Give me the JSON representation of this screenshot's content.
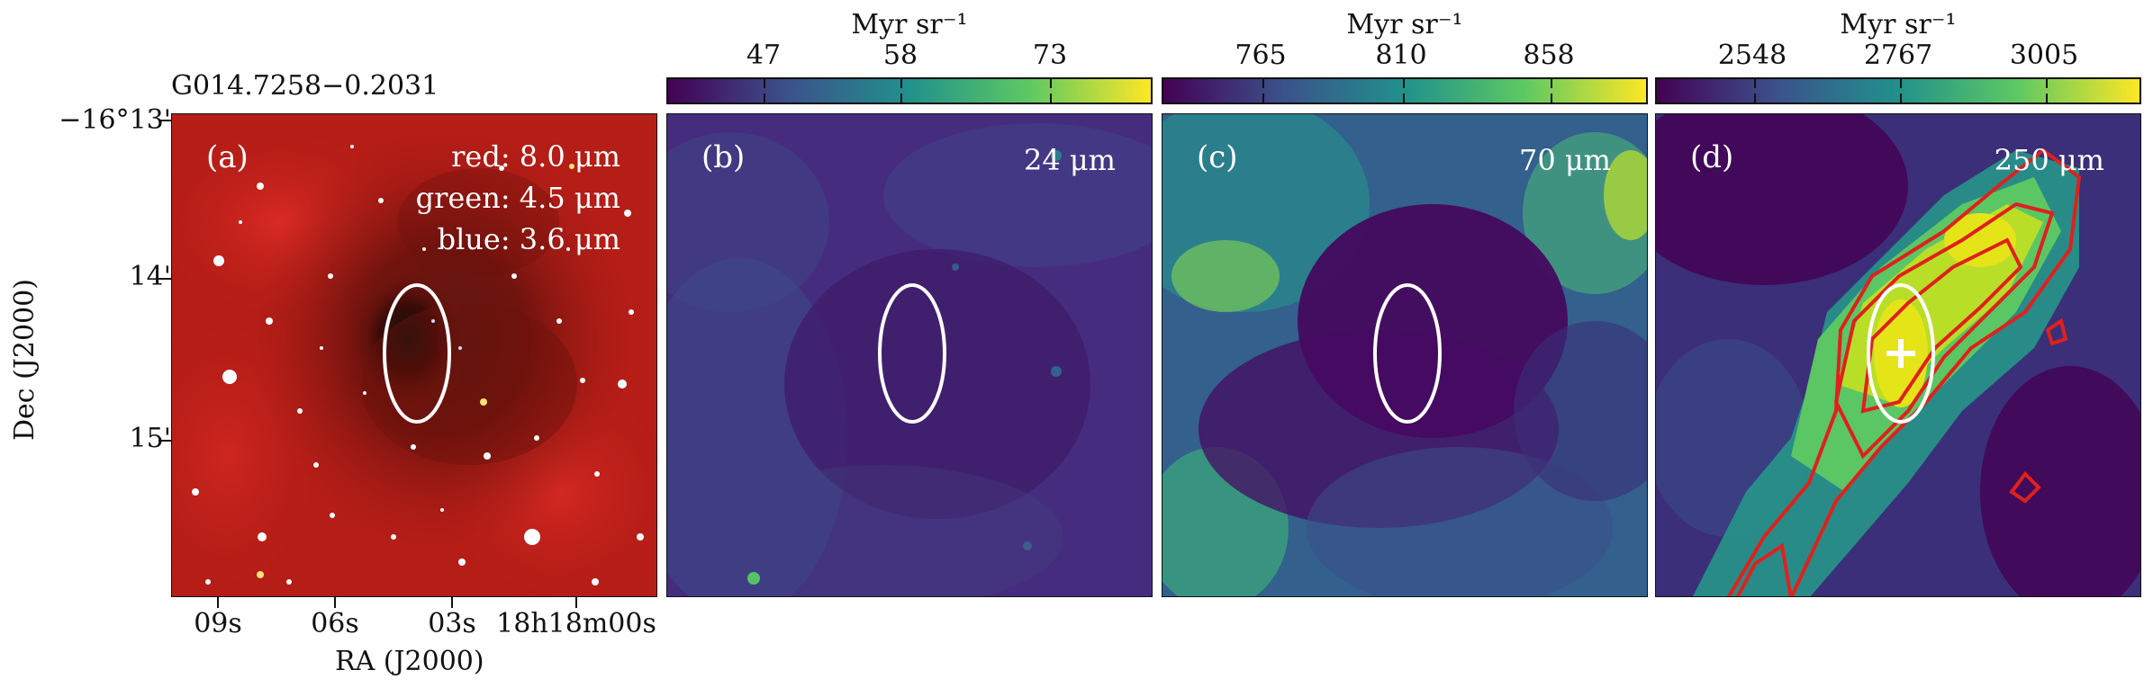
{
  "figure": {
    "source_name": "G014.7258−0.2031",
    "y_axis_title": "Dec (J2000)",
    "x_axis_title": "RA (J2000)",
    "y_ticks": [
      "−16°13'",
      "14'",
      "15'"
    ],
    "x_ticks": [
      "09s",
      "06s",
      "03s",
      "18h18m00s"
    ]
  },
  "panels": [
    {
      "id": "a",
      "label": "(a)",
      "legend": [
        "red: 8.0 μm",
        "green: 4.5 μm",
        "blue: 3.6 μm"
      ]
    },
    {
      "id": "b",
      "label": "(b)",
      "wavelength": "24 μm",
      "colorbar": {
        "unit": "Myr sr⁻¹",
        "ticks": [
          "47",
          "58",
          "73"
        ]
      }
    },
    {
      "id": "c",
      "label": "(c)",
      "wavelength": "70 μm",
      "colorbar": {
        "unit": "Myr sr⁻¹",
        "ticks": [
          "765",
          "810",
          "858"
        ]
      }
    },
    {
      "id": "d",
      "label": "(d)",
      "wavelength": "250 μm",
      "colorbar": {
        "unit": "Myr sr⁻¹",
        "ticks": [
          "2548",
          "2767",
          "3005"
        ]
      }
    }
  ],
  "colors": {
    "ellipse": "#ffffff",
    "contours": "#e0201c",
    "marker": "#ffffff"
  }
}
